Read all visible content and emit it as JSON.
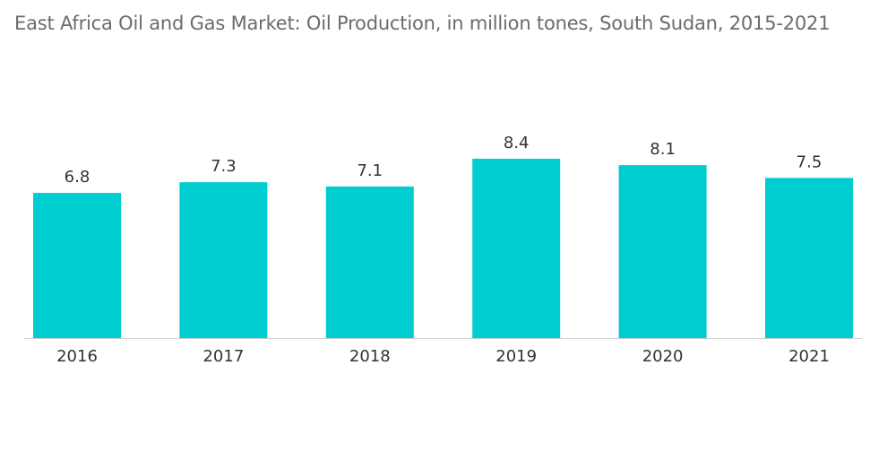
{
  "chart_data": {
    "type": "bar",
    "title": "East Africa Oil and Gas Market: Oil Production, in million tones, South Sudan, 2015-2021",
    "categories": [
      "2016",
      "2017",
      "2018",
      "2019",
      "2020",
      "2021"
    ],
    "values": [
      6.8,
      7.3,
      7.1,
      8.4,
      8.1,
      7.5
    ],
    "data_labels": [
      "6.8",
      "7.3",
      "7.1",
      "8.4",
      "8.1",
      "7.5"
    ],
    "xlabel": "",
    "ylabel": "",
    "ylim": [
      0,
      8.4
    ],
    "grid": false,
    "legend": "none",
    "colors": {
      "bar": "#00CDD0",
      "baseline": "#cfcfcf"
    }
  }
}
